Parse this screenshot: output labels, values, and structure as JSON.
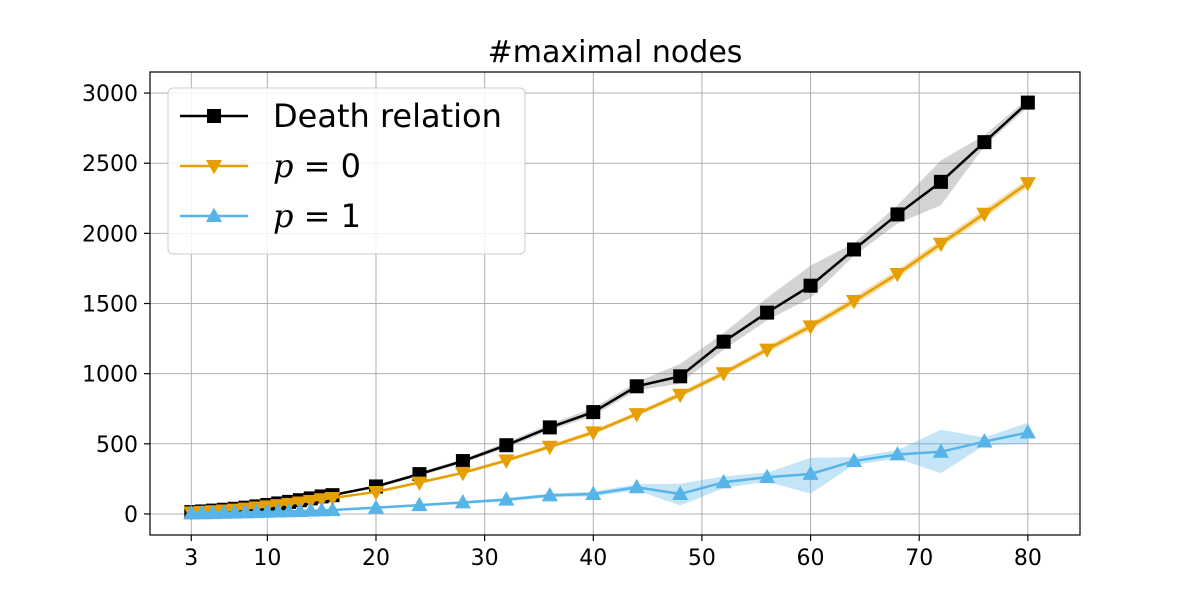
{
  "chart_data": {
    "type": "line",
    "title": "#maximal nodes",
    "xlabel": "",
    "ylabel": "",
    "xlim": [
      -0.8,
      84.8
    ],
    "ylim": [
      -150,
      3150
    ],
    "x_ticks": [
      3,
      10,
      20,
      30,
      40,
      50,
      60,
      70,
      80
    ],
    "y_ticks": [
      0,
      500,
      1000,
      1500,
      2000,
      2500,
      3000
    ],
    "grid": true,
    "legend_placement": "top-left",
    "series": [
      {
        "name": "Death relation",
        "legend_prefix": "",
        "color": "#000000",
        "band_color": "#808080",
        "marker": "square",
        "x": [
          3,
          4,
          5,
          6,
          7,
          8,
          9,
          10,
          11,
          12,
          13,
          14,
          15,
          16,
          20,
          24,
          28,
          32,
          36,
          40,
          44,
          48,
          52,
          56,
          60,
          64,
          68,
          72,
          76,
          80
        ],
        "y": [
          13,
          18,
          24,
          30,
          37,
          45,
          54,
          64,
          75,
          86,
          98,
          111,
          125,
          134,
          196,
          284,
          377,
          490,
          617,
          726,
          910,
          981,
          1228,
          1435,
          1627,
          1885,
          2135,
          2367,
          2650,
          2932
        ],
        "lower": [
          11,
          16,
          21,
          27,
          34,
          41,
          50,
          59,
          69,
          80,
          91,
          104,
          117,
          126,
          186,
          270,
          362,
          470,
          595,
          700,
          880,
          930,
          1170,
          1380,
          1540,
          1840,
          2070,
          2200,
          2620,
          2900
        ],
        "upper": [
          15,
          20,
          27,
          33,
          40,
          49,
          58,
          69,
          81,
          92,
          105,
          118,
          133,
          142,
          206,
          298,
          392,
          510,
          640,
          755,
          940,
          1070,
          1290,
          1540,
          1770,
          1930,
          2200,
          2520,
          2700,
          2960
        ]
      },
      {
        "name": "= 0",
        "legend_prefix": "p",
        "color": "#E69F00",
        "band_color": "#E69F00",
        "marker": "triangle-down",
        "x": [
          3,
          4,
          5,
          6,
          7,
          8,
          9,
          10,
          11,
          12,
          13,
          14,
          15,
          16,
          20,
          24,
          28,
          32,
          36,
          40,
          44,
          48,
          52,
          56,
          60,
          64,
          68,
          72,
          76,
          80
        ],
        "y": [
          11,
          15,
          20,
          25,
          31,
          38,
          46,
          54,
          63,
          72,
          82,
          93,
          105,
          114,
          157,
          224,
          293,
          381,
          479,
          582,
          712,
          850,
          1003,
          1172,
          1337,
          1518,
          1711,
          1926,
          2140,
          2358
        ],
        "lower": [
          10,
          14,
          18,
          23,
          29,
          35,
          43,
          51,
          59,
          68,
          77,
          88,
          99,
          107,
          150,
          214,
          282,
          368,
          465,
          566,
          696,
          830,
          983,
          1150,
          1312,
          1490,
          1683,
          1898,
          2110,
          2330
        ],
        "upper": [
          12,
          16,
          22,
          27,
          33,
          41,
          49,
          57,
          67,
          76,
          87,
          98,
          111,
          121,
          164,
          234,
          304,
          394,
          493,
          598,
          728,
          870,
          1023,
          1194,
          1362,
          1546,
          1739,
          1954,
          2170,
          2386
        ]
      },
      {
        "name": "= 1",
        "legend_prefix": "p",
        "color": "#56B4E9",
        "band_color": "#56B4E9",
        "marker": "triangle-up",
        "x": [
          3,
          4,
          5,
          6,
          7,
          8,
          9,
          10,
          11,
          12,
          13,
          14,
          15,
          16,
          20,
          24,
          28,
          32,
          36,
          40,
          44,
          48,
          52,
          56,
          60,
          64,
          68,
          72,
          76,
          80
        ],
        "y": [
          4,
          5,
          6,
          8,
          9,
          11,
          13,
          15,
          17,
          19,
          21,
          23,
          25,
          28,
          45,
          63,
          82,
          102,
          132,
          142,
          190,
          142,
          226,
          262,
          285,
          377,
          424,
          443,
          516,
          580
        ],
        "lower": [
          3,
          4,
          5,
          6,
          7,
          9,
          10,
          12,
          14,
          15,
          17,
          19,
          21,
          23,
          38,
          55,
          72,
          90,
          118,
          125,
          168,
          60,
          185,
          230,
          145,
          350,
          395,
          290,
          490,
          500
        ],
        "upper": [
          5,
          6,
          8,
          10,
          11,
          13,
          16,
          18,
          20,
          23,
          25,
          27,
          29,
          33,
          52,
          71,
          92,
          114,
          146,
          160,
          212,
          215,
          268,
          295,
          400,
          405,
          455,
          600,
          545,
          650
        ]
      }
    ]
  }
}
